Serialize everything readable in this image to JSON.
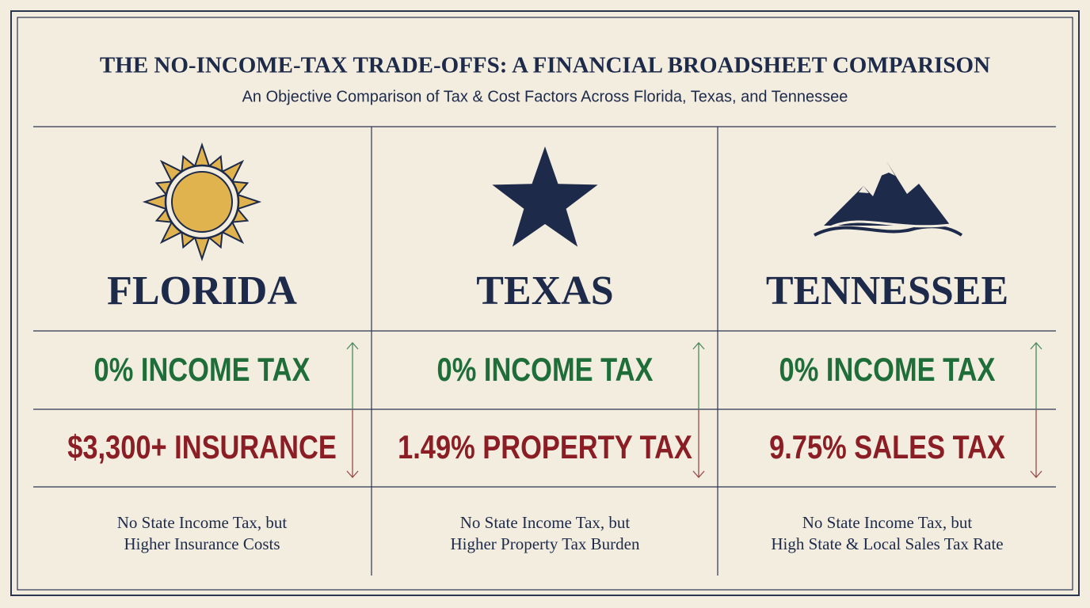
{
  "header": {
    "title": "THE NO-INCOME-TAX TRADE-OFFS: A FINANCIAL BROADSHEET COMPARISON",
    "subtitle": "An Objective Comparison of Tax & Cost Factors Across Florida, Texas, and Tennessee"
  },
  "columns": [
    {
      "name": "FLORIDA",
      "benefit": "0% INCOME TAX",
      "cost": "$3,300+ INSURANCE",
      "note": [
        "No State Income Tax, but",
        "Higher Insurance Costs"
      ]
    },
    {
      "name": "TEXAS",
      "benefit": "0% INCOME TAX",
      "cost": "1.49% PROPERTY TAX",
      "note": [
        "No State Income Tax, but",
        "Higher Property Tax Burden"
      ]
    },
    {
      "name": "TENNESSEE",
      "benefit": "0% INCOME TAX",
      "cost": "9.75% SALES TAX",
      "note": [
        "No State Income Tax, but",
        "High State & Local Sales Tax Rate"
      ]
    }
  ]
}
